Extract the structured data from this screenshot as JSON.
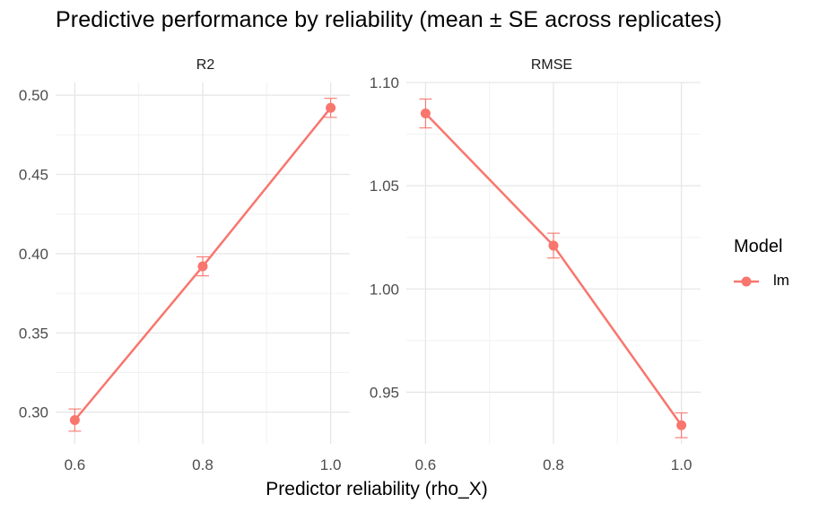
{
  "title": "Predictive performance by reliability (mean ± SE across replicates)",
  "xlabel": "Predictor reliability (rho_X)",
  "legend": {
    "title": "Model",
    "entries": [
      {
        "label": "lm",
        "color": "#F8766D"
      }
    ]
  },
  "chart_data": [
    {
      "type": "line",
      "panel": "R2",
      "x": [
        0.6,
        0.8,
        1.0
      ],
      "x_ticks": [
        0.6,
        0.8,
        1.0
      ],
      "x_tick_labels": [
        "0.6",
        "0.8",
        "1.0"
      ],
      "xlim": [
        0.57,
        1.03
      ],
      "y_ticks": [
        0.3,
        0.35,
        0.4,
        0.45,
        0.5
      ],
      "y_tick_labels": [
        "0.30",
        "0.35",
        "0.40",
        "0.45",
        "0.50"
      ],
      "ylim": [
        0.28,
        0.508
      ],
      "series": [
        {
          "name": "lm",
          "color": "#F8766D",
          "values": [
            0.295,
            0.392,
            0.492
          ],
          "se": [
            0.007,
            0.006,
            0.006
          ]
        }
      ],
      "grid": true
    },
    {
      "type": "line",
      "panel": "RMSE",
      "x": [
        0.6,
        0.8,
        1.0
      ],
      "x_ticks": [
        0.6,
        0.8,
        1.0
      ],
      "x_tick_labels": [
        "0.6",
        "0.8",
        "1.0"
      ],
      "xlim": [
        0.57,
        1.03
      ],
      "y_ticks": [
        0.95,
        1.0,
        1.05,
        1.1
      ],
      "y_tick_labels": [
        "0.95",
        "1.00",
        "1.05",
        "1.10"
      ],
      "ylim": [
        0.925,
        1.1
      ],
      "series": [
        {
          "name": "lm",
          "color": "#F8766D",
          "values": [
            1.085,
            1.021,
            0.934
          ],
          "se": [
            0.007,
            0.006,
            0.006
          ]
        }
      ],
      "grid": true
    }
  ]
}
